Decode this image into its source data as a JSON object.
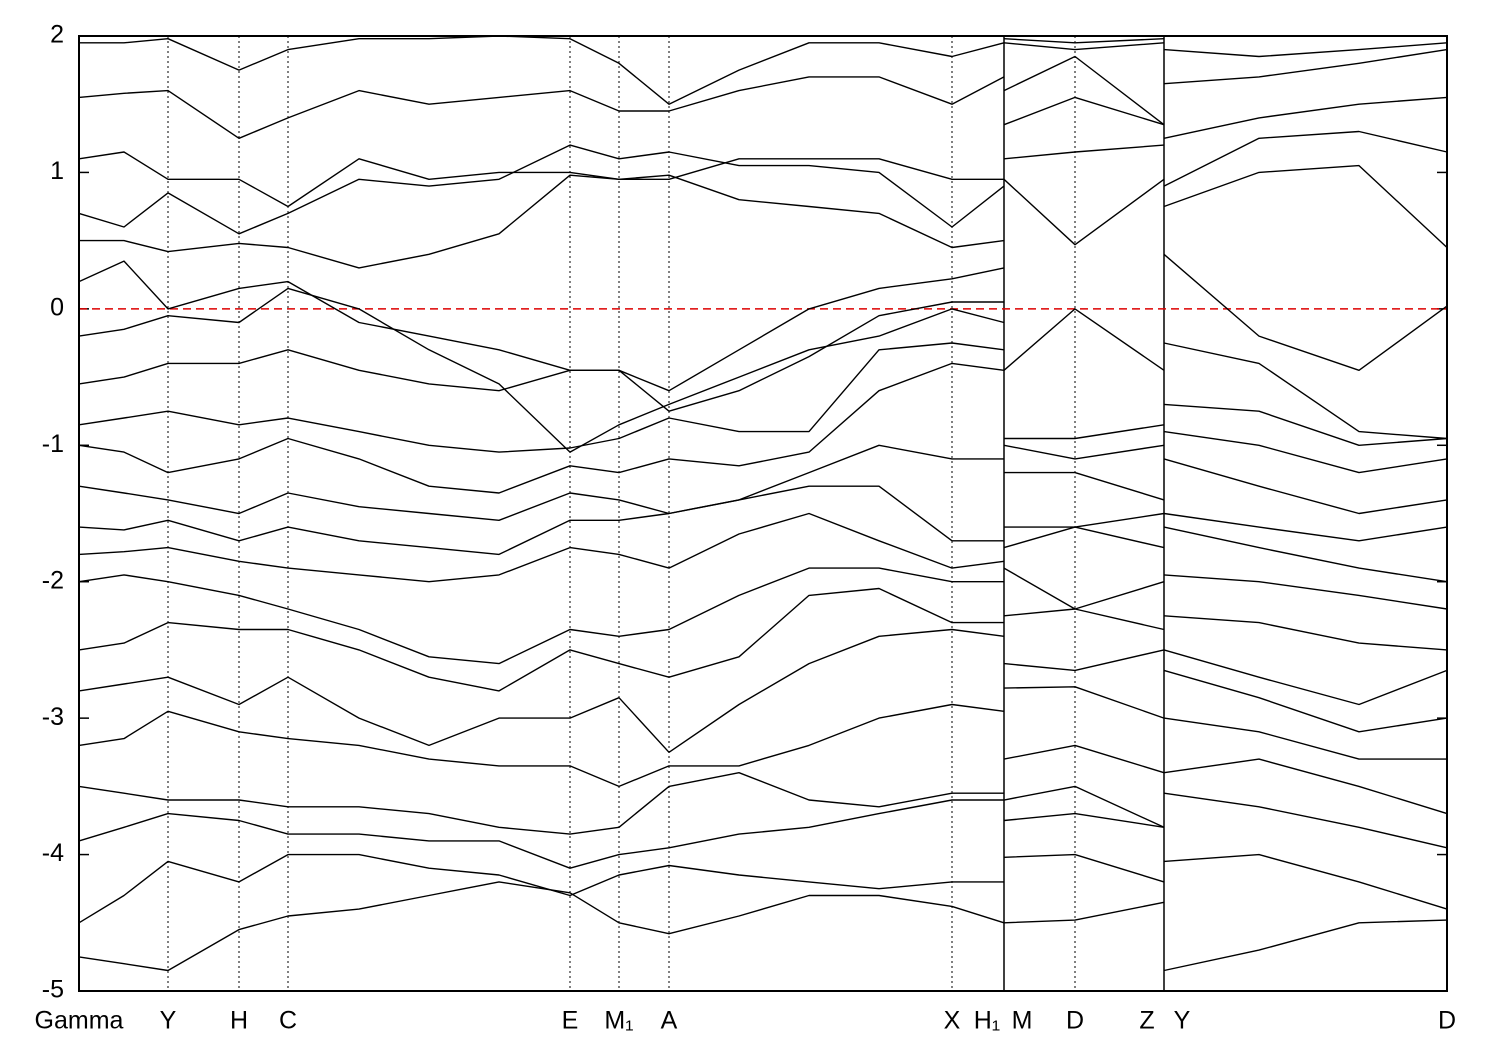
{
  "chart_data": {
    "type": "line",
    "color": "#000000",
    "xlim": [
      0,
      1368
    ],
    "ylim": [
      -5,
      2
    ],
    "yticks": [
      -5,
      -4,
      -3,
      -2,
      -1,
      0,
      1,
      2
    ],
    "fermi_line": {
      "value": 0,
      "color": "#dd0000"
    },
    "kpoints": {
      "labels": [
        "Gamma",
        "Y",
        "H",
        "C",
        "E",
        "M₁",
        "A",
        "X",
        "H₁",
        "M",
        "D",
        "Z",
        "Y",
        "D"
      ],
      "x": [
        0,
        89,
        160,
        209,
        491,
        540,
        590,
        873,
        925,
        925,
        996,
        1085,
        1085,
        1368
      ]
    },
    "x": [
      0,
      45,
      89,
      160,
      209,
      280,
      350,
      420,
      491,
      540,
      590,
      660,
      730,
      800,
      873,
      925,
      925,
      925,
      996,
      1085,
      1085,
      1085,
      1180,
      1280,
      1368
    ],
    "series": [
      {
        "values": [
          -4.75,
          -4.8,
          -4.85,
          -4.55,
          -4.45,
          -4.4,
          -4.3,
          -4.2,
          -4.28,
          -4.5,
          -4.58,
          -4.45,
          -4.3,
          -4.3,
          -4.38,
          -4.5,
          null,
          -4.5,
          -4.48,
          -4.35,
          null,
          -4.85,
          -4.7,
          -4.5,
          -4.48
        ]
      },
      {
        "values": [
          -4.5,
          -4.3,
          -4.05,
          -4.2,
          -4.0,
          -4.0,
          -4.1,
          -4.15,
          -4.3,
          -4.15,
          -4.08,
          -4.15,
          -4.2,
          -4.25,
          -4.2,
          -4.2,
          null,
          -4.02,
          -4.0,
          -4.2,
          null,
          -4.05,
          -4.0,
          -4.2,
          -4.4
        ]
      },
      {
        "values": [
          -3.9,
          -3.8,
          -3.7,
          -3.75,
          -3.85,
          -3.85,
          -3.9,
          -3.9,
          -4.1,
          -4.0,
          -3.95,
          -3.85,
          -3.8,
          -3.7,
          -3.6,
          -3.6,
          null,
          -3.75,
          -3.7,
          -3.8,
          null,
          -3.55,
          -3.65,
          -3.8,
          -3.95
        ]
      },
      {
        "values": [
          -3.5,
          -3.55,
          -3.6,
          -3.6,
          -3.65,
          -3.65,
          -3.7,
          -3.8,
          -3.85,
          -3.8,
          -3.5,
          -3.4,
          -3.6,
          -3.65,
          -3.55,
          -3.55,
          null,
          -3.6,
          -3.5,
          -3.8,
          null,
          -3.4,
          -3.3,
          -3.5,
          -3.7
        ]
      },
      {
        "values": [
          -3.2,
          -3.15,
          -2.95,
          -3.1,
          -3.15,
          -3.2,
          -3.3,
          -3.35,
          -3.35,
          -3.5,
          -3.35,
          -3.35,
          -3.2,
          -3.0,
          -2.9,
          -2.95,
          null,
          -3.3,
          -3.2,
          -3.4,
          null,
          -3.0,
          -3.1,
          -3.3,
          -3.3
        ]
      },
      {
        "values": [
          -2.8,
          -2.75,
          -2.7,
          -2.9,
          -2.7,
          -3.0,
          -3.2,
          -3.0,
          -3.0,
          -2.85,
          -3.25,
          -2.9,
          -2.6,
          -2.4,
          -2.35,
          -2.4,
          null,
          -2.78,
          -2.77,
          -3.0,
          null,
          -2.65,
          -2.85,
          -3.1,
          -3.0
        ]
      },
      {
        "values": [
          -2.5,
          -2.45,
          -2.3,
          -2.35,
          -2.35,
          -2.5,
          -2.7,
          -2.8,
          -2.5,
          -2.6,
          -2.7,
          -2.55,
          -2.1,
          -2.05,
          -2.3,
          -2.3,
          null,
          -2.6,
          -2.65,
          -2.5,
          null,
          -2.5,
          -2.7,
          -2.9,
          -2.65
        ]
      },
      {
        "values": [
          -2.0,
          -1.95,
          -2.0,
          -2.1,
          -2.2,
          -2.35,
          -2.55,
          -2.6,
          -2.35,
          -2.4,
          -2.35,
          -2.1,
          -1.9,
          -1.9,
          -2.0,
          -2.0,
          null,
          -2.25,
          -2.2,
          -2.35,
          null,
          -2.25,
          -2.3,
          -2.45,
          -2.5
        ]
      },
      {
        "values": [
          -1.8,
          -1.78,
          -1.75,
          -1.85,
          -1.9,
          -1.95,
          -2.0,
          -1.95,
          -1.75,
          -1.8,
          -1.9,
          -1.65,
          -1.5,
          -1.7,
          -1.9,
          -1.85,
          null,
          -1.9,
          -2.2,
          -2.0,
          null,
          -1.95,
          -2.0,
          -2.1,
          -2.2
        ]
      },
      {
        "values": [
          -1.6,
          -1.62,
          -1.55,
          -1.7,
          -1.6,
          -1.7,
          -1.75,
          -1.8,
          -1.55,
          -1.55,
          -1.5,
          -1.4,
          -1.3,
          -1.3,
          -1.7,
          -1.7,
          null,
          -1.75,
          -1.6,
          -1.75,
          null,
          -1.6,
          -1.75,
          -1.9,
          -2.0
        ]
      },
      {
        "values": [
          -1.3,
          -1.35,
          -1.4,
          -1.5,
          -1.35,
          -1.45,
          -1.5,
          -1.55,
          -1.35,
          -1.4,
          -1.5,
          -1.4,
          -1.2,
          -1.0,
          -1.1,
          -1.1,
          null,
          -1.6,
          -1.6,
          -1.5,
          null,
          -1.5,
          -1.6,
          -1.7,
          -1.6
        ]
      },
      {
        "values": [
          -1.0,
          -1.05,
          -1.2,
          -1.1,
          -0.95,
          -1.1,
          -1.3,
          -1.35,
          -1.15,
          -1.2,
          -1.1,
          -1.15,
          -1.05,
          -0.6,
          -0.4,
          -0.45,
          null,
          -1.2,
          -1.2,
          -1.4,
          null,
          -1.1,
          -1.3,
          -1.5,
          -1.4
        ]
      },
      {
        "values": [
          -0.85,
          -0.8,
          -0.75,
          -0.85,
          -0.8,
          -0.9,
          -1.0,
          -1.05,
          -1.02,
          -0.95,
          -0.8,
          -0.9,
          -0.9,
          -0.3,
          -0.25,
          -0.3,
          null,
          -1.0,
          -1.1,
          -1.0,
          null,
          -0.9,
          -1.0,
          -1.2,
          -1.1
        ]
      },
      {
        "values": [
          -0.55,
          -0.5,
          -0.4,
          -0.4,
          -0.3,
          -0.45,
          -0.55,
          -0.6,
          -0.45,
          -0.45,
          -0.75,
          -0.6,
          -0.35,
          -0.05,
          0.05,
          0.05,
          null,
          -0.95,
          -0.95,
          -0.85,
          null,
          -0.7,
          -0.75,
          -1.0,
          -0.95
        ]
      },
      {
        "values": [
          -0.2,
          -0.15,
          -0.05,
          -0.1,
          0.15,
          0.0,
          -0.3,
          -0.55,
          -1.05,
          -0.85,
          -0.7,
          -0.5,
          -0.3,
          -0.2,
          0.0,
          -0.1,
          null,
          -0.45,
          0.0,
          -0.45,
          null,
          -0.25,
          -0.4,
          -0.9,
          -0.95
        ]
      },
      {
        "values": [
          0.2,
          0.35,
          0.0,
          0.15,
          0.2,
          -0.1,
          -0.2,
          -0.3,
          -0.45,
          -0.45,
          -0.6,
          -0.3,
          0.0,
          0.15,
          0.22,
          0.3,
          null,
          0.95,
          0.47,
          0.95,
          null,
          0.4,
          -0.2,
          -0.45,
          0.02
        ]
      },
      {
        "values": [
          0.5,
          0.5,
          0.42,
          0.48,
          0.45,
          0.3,
          0.4,
          0.55,
          0.98,
          0.95,
          0.98,
          0.8,
          0.75,
          0.7,
          0.45,
          0.5,
          null,
          1.1,
          1.15,
          1.2,
          null,
          0.75,
          1.0,
          1.05,
          0.45
        ]
      },
      {
        "values": [
          0.7,
          0.6,
          0.85,
          0.55,
          0.7,
          0.95,
          0.9,
          0.95,
          1.2,
          1.1,
          1.15,
          1.05,
          1.05,
          1.0,
          0.6,
          0.9,
          null,
          1.35,
          1.55,
          1.35,
          null,
          0.9,
          1.25,
          1.3,
          1.15
        ]
      },
      {
        "values": [
          1.1,
          1.15,
          0.95,
          0.95,
          0.75,
          1.1,
          0.95,
          1.0,
          1.0,
          0.95,
          0.95,
          1.1,
          1.1,
          1.1,
          0.95,
          0.95,
          null,
          1.6,
          1.85,
          1.35,
          null,
          1.25,
          1.4,
          1.5,
          1.55
        ]
      },
      {
        "values": [
          1.55,
          1.58,
          1.6,
          1.25,
          1.4,
          1.6,
          1.5,
          1.55,
          1.6,
          1.45,
          1.45,
          1.6,
          1.7,
          1.7,
          1.5,
          1.7,
          null,
          1.95,
          1.9,
          1.95,
          null,
          1.65,
          1.7,
          1.8,
          1.9
        ]
      },
      {
        "values": [
          1.95,
          1.95,
          1.98,
          1.75,
          1.9,
          1.98,
          1.98,
          2.0,
          1.98,
          1.8,
          1.5,
          1.75,
          1.95,
          1.95,
          1.85,
          1.95,
          null,
          1.98,
          1.95,
          1.98,
          null,
          1.9,
          1.85,
          1.9,
          1.95
        ]
      }
    ]
  }
}
